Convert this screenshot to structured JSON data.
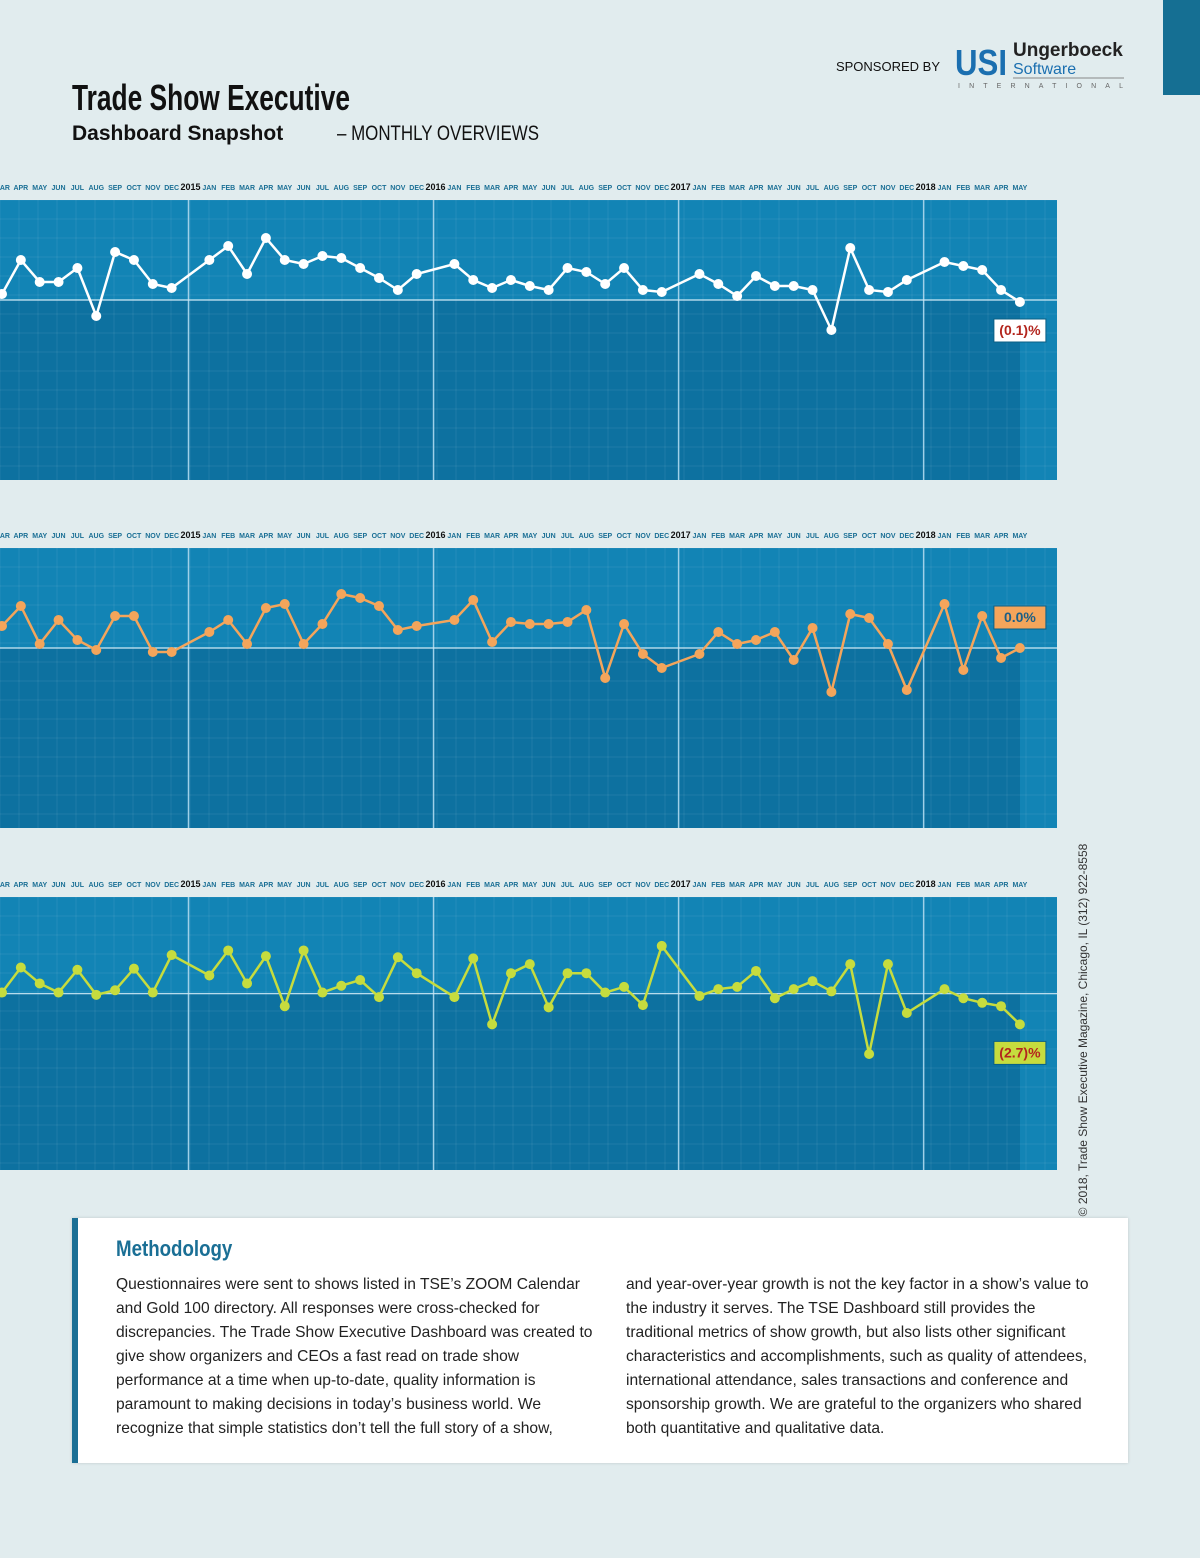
{
  "header": {
    "sponsored_by": "SPONSORED BY",
    "sponsor_logo": "USI",
    "sponsor_name": "Ungerboeck",
    "sponsor_sub": "Software",
    "sponsor_tag": "INTERNATIONAL",
    "title": "Trade Show Executive",
    "subtitle": "Dashboard Snapshot",
    "subtitle_tail": "– MONTHLY OVERVIEWS"
  },
  "chart_data": [
    {
      "type": "line",
      "categories": [
        "MAR",
        "APR",
        "MAY",
        "JUN",
        "JUL",
        "AUG",
        "SEP",
        "OCT",
        "NOV",
        "DEC",
        "JAN",
        "FEB",
        "MAR",
        "APR",
        "MAY",
        "JUN",
        "JUL",
        "AUG",
        "SEP",
        "OCT",
        "NOV",
        "DEC",
        "JAN",
        "FEB",
        "MAR",
        "APR",
        "MAY",
        "JUN",
        "JUL",
        "AUG",
        "SEP",
        "OCT",
        "NOV",
        "DEC",
        "JAN",
        "FEB",
        "MAR",
        "APR",
        "MAY",
        "JUN",
        "JUL",
        "AUG",
        "SEP",
        "OCT",
        "NOV",
        "DEC",
        "JAN",
        "FEB",
        "MAR",
        "APR",
        "MAY"
      ],
      "year_labels": [
        "2015",
        "2016",
        "2017",
        "2018"
      ],
      "series": [
        {
          "color": "#ffffff",
          "values": [
            0.3,
            2.0,
            0.9,
            0.9,
            1.6,
            -0.8,
            2.4,
            2.0,
            0.8,
            0.6,
            2.0,
            2.7,
            1.3,
            3.1,
            2.0,
            1.8,
            2.2,
            2.1,
            1.6,
            1.1,
            0.5,
            1.3,
            1.8,
            1.0,
            0.6,
            1.0,
            0.7,
            0.5,
            1.6,
            1.4,
            0.8,
            1.6,
            0.5,
            0.4,
            1.3,
            0.8,
            0.2,
            1.2,
            0.7,
            0.7,
            0.5,
            -1.5,
            2.6,
            0.5,
            0.4,
            1.0,
            1.9,
            1.7,
            1.5,
            0.5,
            -0.1
          ]
        }
      ],
      "ylim": [
        -9,
        5
      ],
      "end_label": "(0.1)%",
      "end_label_text_color": "#b3261e"
    },
    {
      "type": "line",
      "categories": [
        "MAR",
        "APR",
        "MAY",
        "JUN",
        "JUL",
        "AUG",
        "SEP",
        "OCT",
        "NOV",
        "DEC",
        "JAN",
        "FEB",
        "MAR",
        "APR",
        "MAY",
        "JUN",
        "JUL",
        "AUG",
        "SEP",
        "OCT",
        "NOV",
        "DEC",
        "JAN",
        "FEB",
        "MAR",
        "APR",
        "MAY",
        "JUN",
        "JUL",
        "AUG",
        "SEP",
        "OCT",
        "NOV",
        "DEC",
        "JAN",
        "FEB",
        "MAR",
        "APR",
        "MAY",
        "JUN",
        "JUL",
        "AUG",
        "SEP",
        "OCT",
        "NOV",
        "DEC",
        "JAN",
        "FEB",
        "MAR",
        "APR",
        "MAY"
      ],
      "year_labels": [
        "2015",
        "2016",
        "2017",
        "2018"
      ],
      "series": [
        {
          "color": "#f4a55b",
          "values": [
            1.1,
            2.1,
            0.2,
            1.4,
            0.4,
            -0.1,
            1.6,
            1.6,
            -0.2,
            -0.2,
            0.8,
            1.4,
            0.2,
            2.0,
            2.2,
            0.2,
            1.2,
            2.7,
            2.5,
            2.1,
            0.9,
            1.1,
            1.4,
            2.4,
            0.3,
            1.3,
            1.2,
            1.2,
            1.3,
            1.9,
            -1.5,
            1.2,
            -0.3,
            -1.0,
            -0.3,
            0.8,
            0.2,
            0.4,
            0.8,
            -0.6,
            1.0,
            -2.2,
            1.7,
            1.5,
            0.2,
            -2.1,
            2.2,
            -1.1,
            1.6,
            -0.5,
            0.0
          ]
        }
      ],
      "ylim": [
        -9,
        5
      ],
      "end_label": "0.0%",
      "end_label_text_color": "#1b5f86"
    },
    {
      "type": "line",
      "categories": [
        "MAR",
        "APR",
        "MAY",
        "JUN",
        "JUL",
        "AUG",
        "SEP",
        "OCT",
        "NOV",
        "DEC",
        "JAN",
        "FEB",
        "MAR",
        "APR",
        "MAY",
        "JUN",
        "JUL",
        "AUG",
        "SEP",
        "OCT",
        "NOV",
        "DEC",
        "JAN",
        "FEB",
        "MAR",
        "APR",
        "MAY",
        "JUN",
        "JUL",
        "AUG",
        "SEP",
        "OCT",
        "NOV",
        "DEC",
        "JAN",
        "FEB",
        "MAR",
        "APR",
        "MAY",
        "JUN",
        "JUL",
        "AUG",
        "SEP",
        "OCT",
        "NOV",
        "DEC",
        "JAN",
        "FEB",
        "MAR",
        "APR",
        "MAY"
      ],
      "year_labels": [
        "2015",
        "2016",
        "2017",
        "2018"
      ],
      "series": [
        {
          "color": "#c6dc3e",
          "values": [
            0.1,
            2.3,
            0.9,
            0.1,
            2.1,
            -0.1,
            0.3,
            2.2,
            0.1,
            3.4,
            1.6,
            3.8,
            0.9,
            3.3,
            -1.1,
            3.8,
            0.1,
            0.7,
            1.2,
            -0.3,
            3.2,
            1.8,
            -0.3,
            3.1,
            -2.7,
            1.8,
            2.6,
            -1.2,
            1.8,
            1.8,
            0.1,
            0.6,
            -1.0,
            4.2,
            -0.2,
            0.4,
            0.6,
            2.0,
            -0.4,
            0.4,
            1.1,
            0.2,
            2.6,
            -5.3,
            2.6,
            -1.7,
            0.4,
            -0.4,
            -0.8,
            -1.1,
            -2.7
          ]
        }
      ],
      "ylim": [
        -15.5,
        8.5
      ],
      "end_label": "(2.7)%",
      "end_label_text_color": "#b3261e"
    }
  ],
  "copyright": "© 2018, Trade Show Executive Magazine, Chicago, IL (312) 922-8558",
  "methodology": {
    "title": "Methodology",
    "columns": [
      "Questionnaires were sent to shows listed in TSE’s ZOOM Calendar and Gold 100 directory. All responses were cross-checked for discrepancies. The Trade Show Executive Dashboard was created to give show organizers and CEOs a fast read on trade show performance at a time when up-to-date, quality information is paramount to making decisions in today’s business world. We recognize that simple statistics don’t tell the full story of a show,",
      "and year-over-year growth is not the key factor in a show’s value to the industry it serves. The TSE Dashboard still provides the traditional metrics of show growth, but also lists other significant characteristics and accomplishments, such as quality of attendees, international attendance, sales transactions and conference and sponsorship growth. We are grateful to the organizers who shared both quantitative and qualitative data."
    ]
  }
}
